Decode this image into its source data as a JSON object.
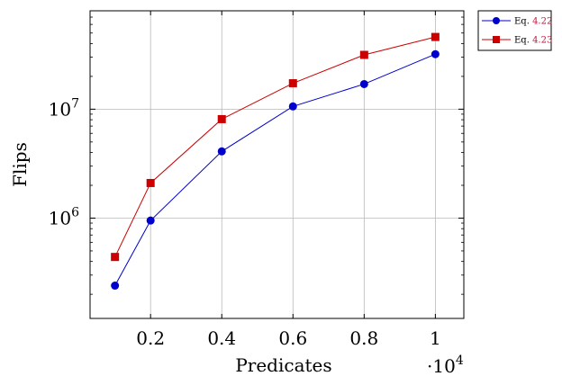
{
  "chart_data": {
    "type": "line",
    "xlabel": "Predicates",
    "ylabel": "Flips",
    "x_multiplier": {
      "base": "·10",
      "exponent": "4"
    },
    "x": [
      0.1,
      0.2,
      0.4,
      0.6,
      0.8,
      1.0
    ],
    "xlim": [
      0.03,
      1.08
    ],
    "x_ticks": [
      {
        "value": 0.2,
        "label": "0.2"
      },
      {
        "value": 0.4,
        "label": "0.4"
      },
      {
        "value": 0.6,
        "label": "0.6"
      },
      {
        "value": 0.8,
        "label": "0.8"
      },
      {
        "value": 1.0,
        "label": "1"
      }
    ],
    "y_scale": "log",
    "ylim": [
      120000,
      80000000
    ],
    "y_ticks": [
      {
        "value": 1000000,
        "base": "10",
        "exponent": "6"
      },
      {
        "value": 10000000,
        "base": "10",
        "exponent": "7"
      }
    ],
    "grid": true,
    "legend_position": "outside top-right",
    "series": [
      {
        "legend_prefix": "Eq. ",
        "legend_ref": "4.22",
        "color": "#0000cc",
        "marker": "circle",
        "values": [
          240000,
          950000,
          4100000,
          10600000,
          17000000,
          32000000
        ]
      },
      {
        "legend_prefix": "Eq. ",
        "legend_ref": "4.23",
        "color": "#cc0000",
        "marker": "square",
        "values": [
          440000,
          2100000,
          8100000,
          17300000,
          31500000,
          46000000
        ]
      }
    ],
    "ref_color": "#c0143c"
  }
}
